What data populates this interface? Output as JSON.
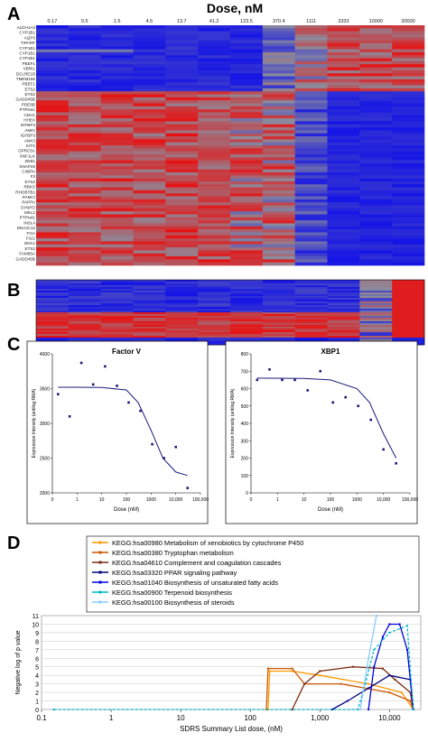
{
  "panel_labels": {
    "a": "A",
    "b": "B",
    "c": "C",
    "d": "D"
  },
  "heatmap": {
    "title": "Dose, nM",
    "doses": [
      "0.17",
      "0.5",
      "1.5",
      "4.5",
      "13.7",
      "41.2",
      "123.5",
      "370.4",
      "1111",
      "3333",
      "10000",
      "30000"
    ],
    "genes": [
      "ALDH1A3",
      "CYP1B1",
      "AQP3",
      "TIPARP",
      "CYP1B1",
      "CYP1B1",
      "CYP1B1",
      "PBEF1",
      "VBRI1",
      "DCLRE1B",
      "TMEM158",
      "PBEF1",
      "ETS2",
      "ETS2",
      "GADD45B",
      "PDE8B",
      "PTPN41",
      "CDH1",
      "HHEX",
      "IGFBP3",
      "AMIG",
      "IGFBP3",
      "ANK3",
      "KITS",
      "GPRC5A",
      "SNF1LK",
      "ZEB1",
      "SNAP25",
      "C4BPA",
      "F3",
      "ETS2",
      "RBKS",
      "RHOBTB1",
      "PAMCI",
      "PAPPA",
      "SYNPO",
      "MKL2",
      "PTPN41",
      "INSL4",
      "DNAJC12",
      "FGA",
      "FGG",
      "DKK1",
      "ETS2",
      "FAM65A",
      "GADD45B"
    ]
  },
  "line_plots": [
    {
      "title": "Factor V",
      "ylabel": "Expression Intensity (antilog RMA)",
      "xlabel": "Dose (nM)",
      "yticks": [
        "2000",
        "2500",
        "3000",
        "3500",
        "4000"
      ],
      "xticks": [
        "0",
        "1",
        "10",
        "100",
        "1000",
        "10,000",
        "100,000"
      ]
    },
    {
      "title": "XBP1",
      "ylabel": "Expression Intensity (antilog RMA)",
      "xlabel": "Dose (nM)",
      "yticks": [
        "0",
        "100",
        "200",
        "300",
        "400",
        "500",
        "600",
        "700",
        "800"
      ],
      "xticks": [
        "0",
        "1",
        "10",
        "100",
        "1000",
        "10,000",
        "100,000"
      ]
    }
  ],
  "chart_data": [
    {
      "type": "heatmap",
      "title": "Dose, nM",
      "panel": "A",
      "x": [
        "0.17",
        "0.5",
        "1.5",
        "4.5",
        "13.7",
        "41.2",
        "123.5",
        "370.4",
        "1111",
        "3333",
        "10000",
        "30000"
      ],
      "color_scale": {
        "low": "#1010e8",
        "high": "#ee1010",
        "mid": "#8a8a9a"
      }
    },
    {
      "type": "heatmap",
      "panel": "B",
      "x": [
        "0.17",
        "0.5",
        "1.5",
        "4.5",
        "13.7",
        "41.2",
        "123.5",
        "370.4",
        "1111",
        "3333",
        "10000",
        "30000"
      ]
    },
    {
      "type": "scatter",
      "panel": "C",
      "title": "Factor V",
      "xscale": "log",
      "xlabel": "Dose (nM)",
      "ylabel": "Expression Intensity (antilog RMA)",
      "ylim": [
        2000,
        4000
      ],
      "points": [
        [
          0.17,
          3420
        ],
        [
          0.5,
          3100
        ],
        [
          1.5,
          3870
        ],
        [
          4.5,
          3560
        ],
        [
          13.7,
          3820
        ],
        [
          41.2,
          3540
        ],
        [
          123.5,
          3300
        ],
        [
          370.4,
          3180
        ],
        [
          1111,
          2700
        ],
        [
          3333,
          2500
        ],
        [
          10000,
          2660
        ],
        [
          30000,
          2070
        ]
      ],
      "fit": [
        [
          0.17,
          3520
        ],
        [
          1,
          3520
        ],
        [
          10,
          3515
        ],
        [
          100,
          3480
        ],
        [
          300,
          3300
        ],
        [
          1000,
          2900
        ],
        [
          3000,
          2500
        ],
        [
          10000,
          2300
        ],
        [
          30000,
          2250
        ]
      ]
    },
    {
      "type": "scatter",
      "panel": "C",
      "title": "XBP1",
      "xscale": "log",
      "xlabel": "Dose (nM)",
      "ylabel": "Expression Intensity (antilog RMA)",
      "ylim": [
        0,
        800
      ],
      "points": [
        [
          0.17,
          650
        ],
        [
          0.5,
          710
        ],
        [
          1.5,
          650
        ],
        [
          4.5,
          650
        ],
        [
          13.7,
          590
        ],
        [
          41.2,
          700
        ],
        [
          123.5,
          520
        ],
        [
          370.4,
          550
        ],
        [
          1111,
          500
        ],
        [
          3333,
          420
        ],
        [
          10000,
          250
        ],
        [
          30000,
          170
        ]
      ],
      "fit": [
        [
          0.17,
          660
        ],
        [
          10,
          658
        ],
        [
          100,
          650
        ],
        [
          1000,
          600
        ],
        [
          3000,
          520
        ],
        [
          10000,
          340
        ],
        [
          30000,
          200
        ]
      ]
    },
    {
      "type": "line",
      "panel": "D",
      "xscale": "log",
      "xlabel": "SDRS Summary List dose, (nM)",
      "ylabel": "Negative log of p value",
      "xticks": [
        "0.1",
        "1",
        "10",
        "100",
        "1,000",
        "10,000"
      ],
      "yticks": [
        "0",
        "1",
        "2",
        "3",
        "4",
        "5",
        "6",
        "7",
        "8",
        "9",
        "10",
        "11"
      ],
      "ylim": [
        0,
        11
      ],
      "series": [
        {
          "name": "KEGG:hsa00980 Metabolism of xenobiotics by cytochrome P450",
          "color": "#ff9900",
          "points": [
            [
              180,
              0
            ],
            [
              190,
              4.5
            ],
            [
              400,
              4.5
            ],
            [
              1000,
              4.0
            ],
            [
              5000,
              3.0
            ],
            [
              15000,
              2.0
            ],
            [
              22000,
              0
            ]
          ]
        },
        {
          "name": "KEGG:hsa00380 Tryptophan metabolism",
          "color": "#cc5500",
          "points": [
            [
              170,
              0
            ],
            [
              180,
              4.8
            ],
            [
              400,
              4.8
            ],
            [
              600,
              3.0
            ],
            [
              2000,
              3.0
            ],
            [
              10000,
              2.0
            ],
            [
              20000,
              1.0
            ],
            [
              22000,
              0
            ]
          ]
        },
        {
          "name": "KEGG:hsa04610 Complement and coagulation cascades",
          "color": "#7a2a10",
          "points": [
            [
              400,
              0
            ],
            [
              600,
              3.0
            ],
            [
              1000,
              4.5
            ],
            [
              3000,
              5.0
            ],
            [
              8000,
              4.8
            ],
            [
              12000,
              3.5
            ],
            [
              20000,
              2.0
            ],
            [
              22000,
              0
            ]
          ]
        },
        {
          "name": "KEGG:hsa03320 PPAR signaling pathway",
          "color": "#000080",
          "points": [
            [
              1500,
              0
            ],
            [
              2500,
              1.0
            ],
            [
              5000,
              2.5
            ],
            [
              10000,
              4.0
            ],
            [
              20000,
              3.5
            ],
            [
              22000,
              0
            ]
          ]
        },
        {
          "name": "KEGG:hsa01040 Biosynthesis of unsaturated fatty acids",
          "color": "#0000dd",
          "points": [
            [
              5000,
              0
            ],
            [
              6000,
              5.0
            ],
            [
              8000,
              8.5
            ],
            [
              10000,
              10.0
            ],
            [
              14000,
              10.0
            ],
            [
              18000,
              7.0
            ],
            [
              22000,
              0
            ]
          ]
        },
        {
          "name": "KEGG:hsa00900 Terpenoid biosynthesis",
          "color": "#00b8c8",
          "points": [
            [
              0.15,
              0
            ],
            [
              3500,
              0
            ],
            [
              4500,
              3.0
            ],
            [
              6000,
              7.0
            ],
            [
              10000,
              9.0
            ],
            [
              18000,
              9.8
            ],
            [
              22000,
              0
            ]
          ]
        },
        {
          "name": "KEGG:hsa00100 Biosynthesis of steroids",
          "color": "#88ccff",
          "points": [
            [
              3800,
              0
            ],
            [
              5000,
              6.0
            ],
            [
              6500,
              11.0
            ]
          ]
        }
      ]
    }
  ]
}
